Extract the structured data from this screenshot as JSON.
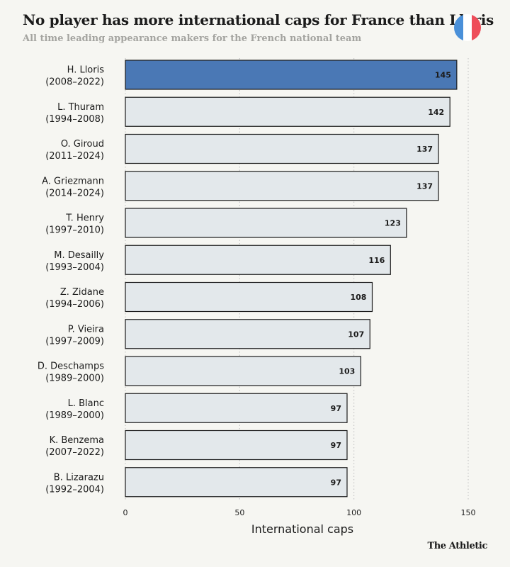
{
  "title": "No player has more international caps for France than Lloris",
  "subtitle": "All time leading appearance makers for the French national team",
  "brand": "The Athletic",
  "flag_colors": [
    "#4a90d9",
    "#ffffff",
    "#ee4d5a"
  ],
  "colors": {
    "highlight_bar": "#4a78b5",
    "bar": "#e3e8eb",
    "bar_stroke": "#1b1b1b",
    "gridline": "#bdbdbd",
    "highlight_value_text": "#ffffff"
  },
  "chart_data": {
    "type": "bar",
    "orientation": "horizontal",
    "categories": [
      "H. Lloris (2008–2022)",
      "L. Thuram (1994–2008)",
      "O. Giroud (2011–2024)",
      "A. Griezmann (2014–2024)",
      "T. Henry (1997–2010)",
      "M. Desailly (1993–2004)",
      "Z. Zidane (1994–2006)",
      "P. Vieira (1997–2009)",
      "D. Deschamps (1989–2000)",
      "L. Blanc (1989–2000)",
      "K. Benzema (2007–2022)",
      "B. Lizarazu (1992–2004)"
    ],
    "category_lines": [
      [
        "H. Lloris",
        "(2008–2022)"
      ],
      [
        "L. Thuram",
        "(1994–2008)"
      ],
      [
        "O. Giroud",
        "(2011–2024)"
      ],
      [
        "A. Griezmann",
        "(2014–2024)"
      ],
      [
        "T. Henry",
        "(1997–2010)"
      ],
      [
        "M. Desailly",
        "(1993–2004)"
      ],
      [
        "Z. Zidane",
        "(1994–2006)"
      ],
      [
        "P. Vieira",
        "(1997–2009)"
      ],
      [
        "D. Deschamps",
        "(1989–2000)"
      ],
      [
        "L. Blanc",
        "(1989–2000)"
      ],
      [
        "K. Benzema",
        "(2007–2022)"
      ],
      [
        "B. Lizarazu",
        "(1992–2004)"
      ]
    ],
    "values": [
      145,
      142,
      137,
      137,
      123,
      116,
      108,
      107,
      103,
      97,
      97,
      97
    ],
    "highlight_index": 0,
    "xlabel": "International caps",
    "ylabel": "",
    "xlim": [
      0,
      150
    ],
    "xticks": [
      0,
      50,
      100,
      150
    ],
    "grid": "vertical dotted lines at ticks",
    "legend": "none"
  }
}
